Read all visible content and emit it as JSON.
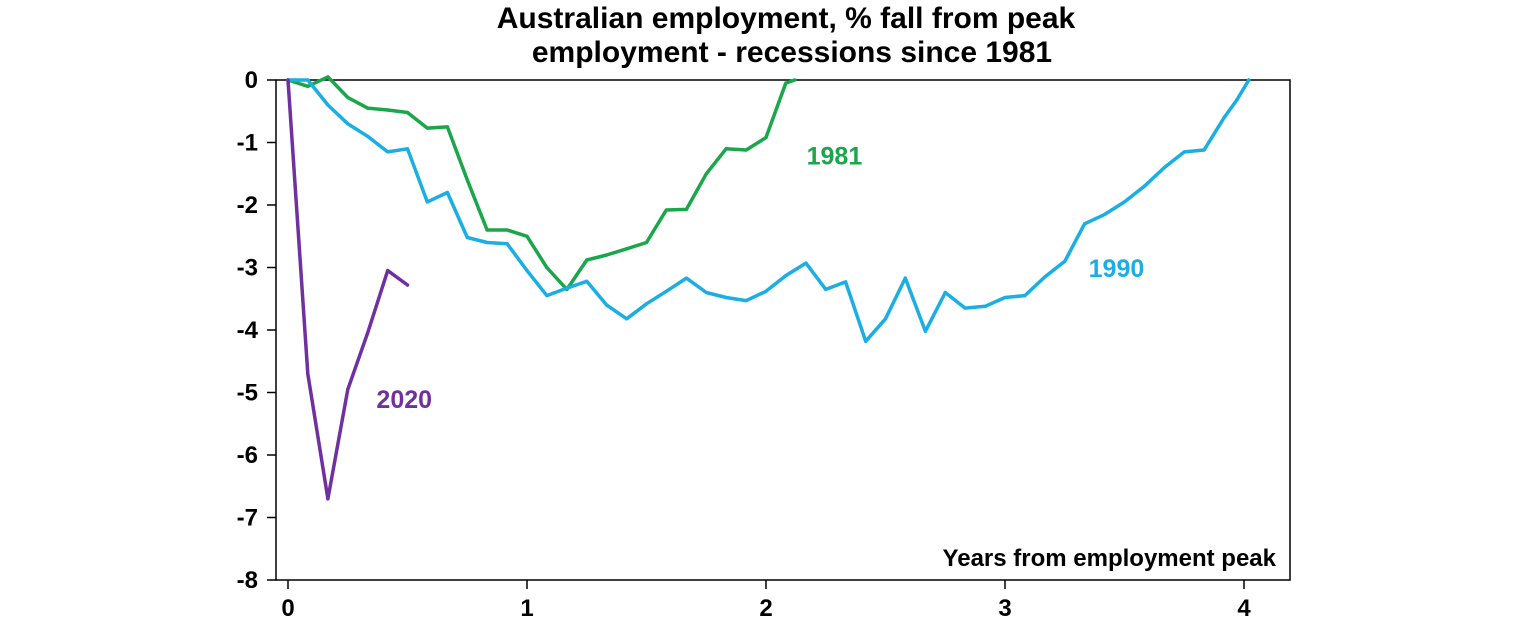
{
  "chart_data": {
    "type": "line",
    "title": "Australian employment, % fall from peak",
    "subtitle": "employment - recessions since 1981",
    "xlabel": "Years from employment peak",
    "ylabel": "",
    "xlim": [
      -0.05,
      4.2
    ],
    "ylim": [
      -8,
      0
    ],
    "x_ticks": [
      0,
      1,
      2,
      3,
      4
    ],
    "y_ticks": [
      0,
      -1,
      -2,
      -3,
      -4,
      -5,
      -6,
      -7,
      -8
    ],
    "grid": false,
    "legend": "none",
    "series": [
      {
        "name": "1981",
        "color": "#1aa64a",
        "label_at": [
          2.17,
          -1.35
        ],
        "x": [
          0,
          0.083,
          0.167,
          0.25,
          0.333,
          0.417,
          0.5,
          0.583,
          0.667,
          0.75,
          0.833,
          0.917,
          1.0,
          1.083,
          1.167,
          1.25,
          1.333,
          1.417,
          1.5,
          1.583,
          1.667,
          1.75,
          1.833,
          1.917,
          2.0,
          2.083,
          2.12
        ],
        "values": [
          0,
          -0.1,
          0.05,
          -0.28,
          -0.45,
          -0.48,
          -0.52,
          -0.77,
          -0.75,
          -1.6,
          -2.4,
          -2.4,
          -2.5,
          -3.0,
          -3.35,
          -2.88,
          -2.8,
          -2.7,
          -2.6,
          -2.08,
          -2.07,
          -1.5,
          -1.1,
          -1.12,
          -0.92,
          -0.05,
          0
        ]
      },
      {
        "name": "1990",
        "color": "#1aaee5",
        "label_at": [
          3.35,
          -3.15
        ],
        "x": [
          0,
          0.083,
          0.167,
          0.25,
          0.333,
          0.417,
          0.5,
          0.583,
          0.667,
          0.75,
          0.833,
          0.917,
          1.0,
          1.083,
          1.167,
          1.25,
          1.333,
          1.417,
          1.5,
          1.583,
          1.667,
          1.75,
          1.833,
          1.917,
          2.0,
          2.083,
          2.167,
          2.25,
          2.333,
          2.417,
          2.5,
          2.583,
          2.667,
          2.75,
          2.833,
          2.917,
          3.0,
          3.083,
          3.167,
          3.25,
          3.333,
          3.417,
          3.5,
          3.583,
          3.667,
          3.75,
          3.833,
          3.917,
          3.97,
          4.02
        ],
        "values": [
          0,
          0,
          -0.4,
          -0.7,
          -0.9,
          -1.15,
          -1.1,
          -1.95,
          -1.8,
          -2.52,
          -2.6,
          -2.62,
          -3.05,
          -3.45,
          -3.33,
          -3.22,
          -3.6,
          -3.82,
          -3.58,
          -3.38,
          -3.17,
          -3.4,
          -3.48,
          -3.53,
          -3.38,
          -3.13,
          -2.93,
          -3.35,
          -3.23,
          -4.18,
          -3.82,
          -3.17,
          -4.02,
          -3.4,
          -3.65,
          -3.62,
          -3.48,
          -3.45,
          -3.15,
          -2.9,
          -2.3,
          -2.15,
          -1.95,
          -1.7,
          -1.4,
          -1.15,
          -1.12,
          -0.6,
          -0.32,
          0
        ]
      },
      {
        "name": "2020",
        "color": "#7030a0",
        "label_at": [
          0.37,
          -5.25
        ],
        "x": [
          0,
          0.083,
          0.167,
          0.25,
          0.333,
          0.417,
          0.5
        ],
        "values": [
          0,
          -4.7,
          -6.7,
          -4.95,
          -4.05,
          -3.05,
          -3.28
        ]
      }
    ]
  }
}
